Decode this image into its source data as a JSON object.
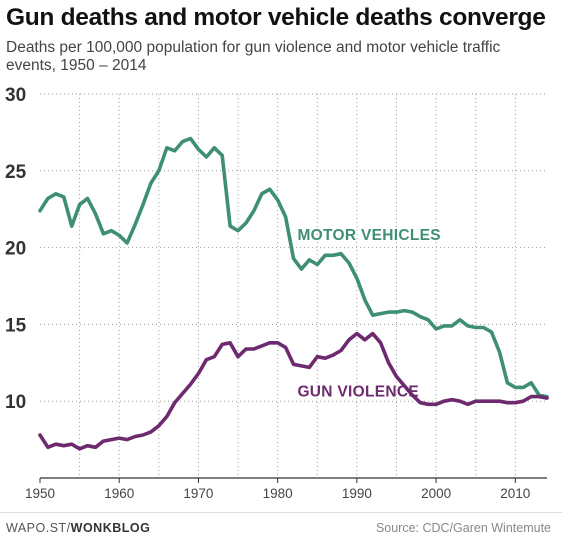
{
  "chart_data": {
    "type": "line",
    "title": "Gun deaths and motor vehicle deaths converge",
    "subtitle": "Deaths per 100,000 population for gun violence and motor vehicle traffic events, 1950 – 2014",
    "xlabel": "",
    "ylabel": "",
    "xlim": [
      1950,
      2014
    ],
    "ylim": [
      5,
      30
    ],
    "x_ticks": [
      1950,
      1960,
      1970,
      1980,
      1990,
      2000,
      2010
    ],
    "y_ticks": [
      10,
      15,
      20,
      25,
      30
    ],
    "y_tick_labels": [
      "10",
      "15",
      "20",
      "25",
      "30"
    ],
    "grid": true,
    "x": [
      1950,
      1951,
      1952,
      1953,
      1954,
      1955,
      1956,
      1957,
      1958,
      1959,
      1960,
      1961,
      1962,
      1963,
      1964,
      1965,
      1966,
      1967,
      1968,
      1969,
      1970,
      1971,
      1972,
      1973,
      1974,
      1975,
      1976,
      1977,
      1978,
      1979,
      1980,
      1981,
      1982,
      1983,
      1984,
      1985,
      1986,
      1987,
      1988,
      1989,
      1990,
      1991,
      1992,
      1993,
      1994,
      1995,
      1996,
      1997,
      1998,
      1999,
      2000,
      2001,
      2002,
      2003,
      2004,
      2005,
      2006,
      2007,
      2008,
      2009,
      2010,
      2011,
      2012,
      2013,
      2014
    ],
    "series": [
      {
        "name": "MOTOR VEHICLES",
        "color": "#3f8f72",
        "values": [
          22.4,
          23.2,
          23.5,
          23.3,
          21.4,
          22.8,
          23.2,
          22.2,
          20.9,
          21.1,
          20.8,
          20.3,
          21.5,
          22.8,
          24.2,
          25.0,
          26.5,
          26.3,
          26.9,
          27.1,
          26.4,
          25.9,
          26.5,
          26.0,
          21.4,
          21.1,
          21.6,
          22.4,
          23.5,
          23.8,
          23.1,
          22.0,
          19.3,
          18.6,
          19.2,
          18.9,
          19.5,
          19.5,
          19.6,
          19.0,
          18.0,
          16.6,
          15.6,
          15.7,
          15.8,
          15.8,
          15.9,
          15.8,
          15.5,
          15.3,
          14.7,
          14.9,
          14.9,
          15.3,
          14.9,
          14.8,
          14.8,
          14.5,
          13.2,
          11.2,
          10.9,
          10.9,
          11.2,
          10.4,
          10.3
        ],
        "label_x": 1982.5,
        "label_y": 20.5
      },
      {
        "name": "GUN VIOLENCE",
        "color": "#6e2a6f",
        "values": [
          7.8,
          7.0,
          7.2,
          7.1,
          7.2,
          6.9,
          7.1,
          7.0,
          7.4,
          7.5,
          7.6,
          7.5,
          7.7,
          7.8,
          8.0,
          8.4,
          9.0,
          9.9,
          10.5,
          11.1,
          11.8,
          12.7,
          12.9,
          13.7,
          13.8,
          12.9,
          13.4,
          13.4,
          13.6,
          13.8,
          13.8,
          13.5,
          12.4,
          12.3,
          12.2,
          12.9,
          12.8,
          13.0,
          13.3,
          14.0,
          14.4,
          14.0,
          14.4,
          13.8,
          12.5,
          11.6,
          11.0,
          10.4,
          9.9,
          9.8,
          9.8,
          10.0,
          10.1,
          10.0,
          9.8,
          10.0,
          10.0,
          10.0,
          10.0,
          9.9,
          9.9,
          10.0,
          10.3,
          10.3,
          10.2
        ],
        "label_x": 1982.5,
        "label_y": 10.3
      }
    ]
  },
  "footer": {
    "source_prefix": "WAPO.ST/",
    "source_brand": "WONKBLOG",
    "credit": "Source: CDC/Garen Wintemute"
  }
}
